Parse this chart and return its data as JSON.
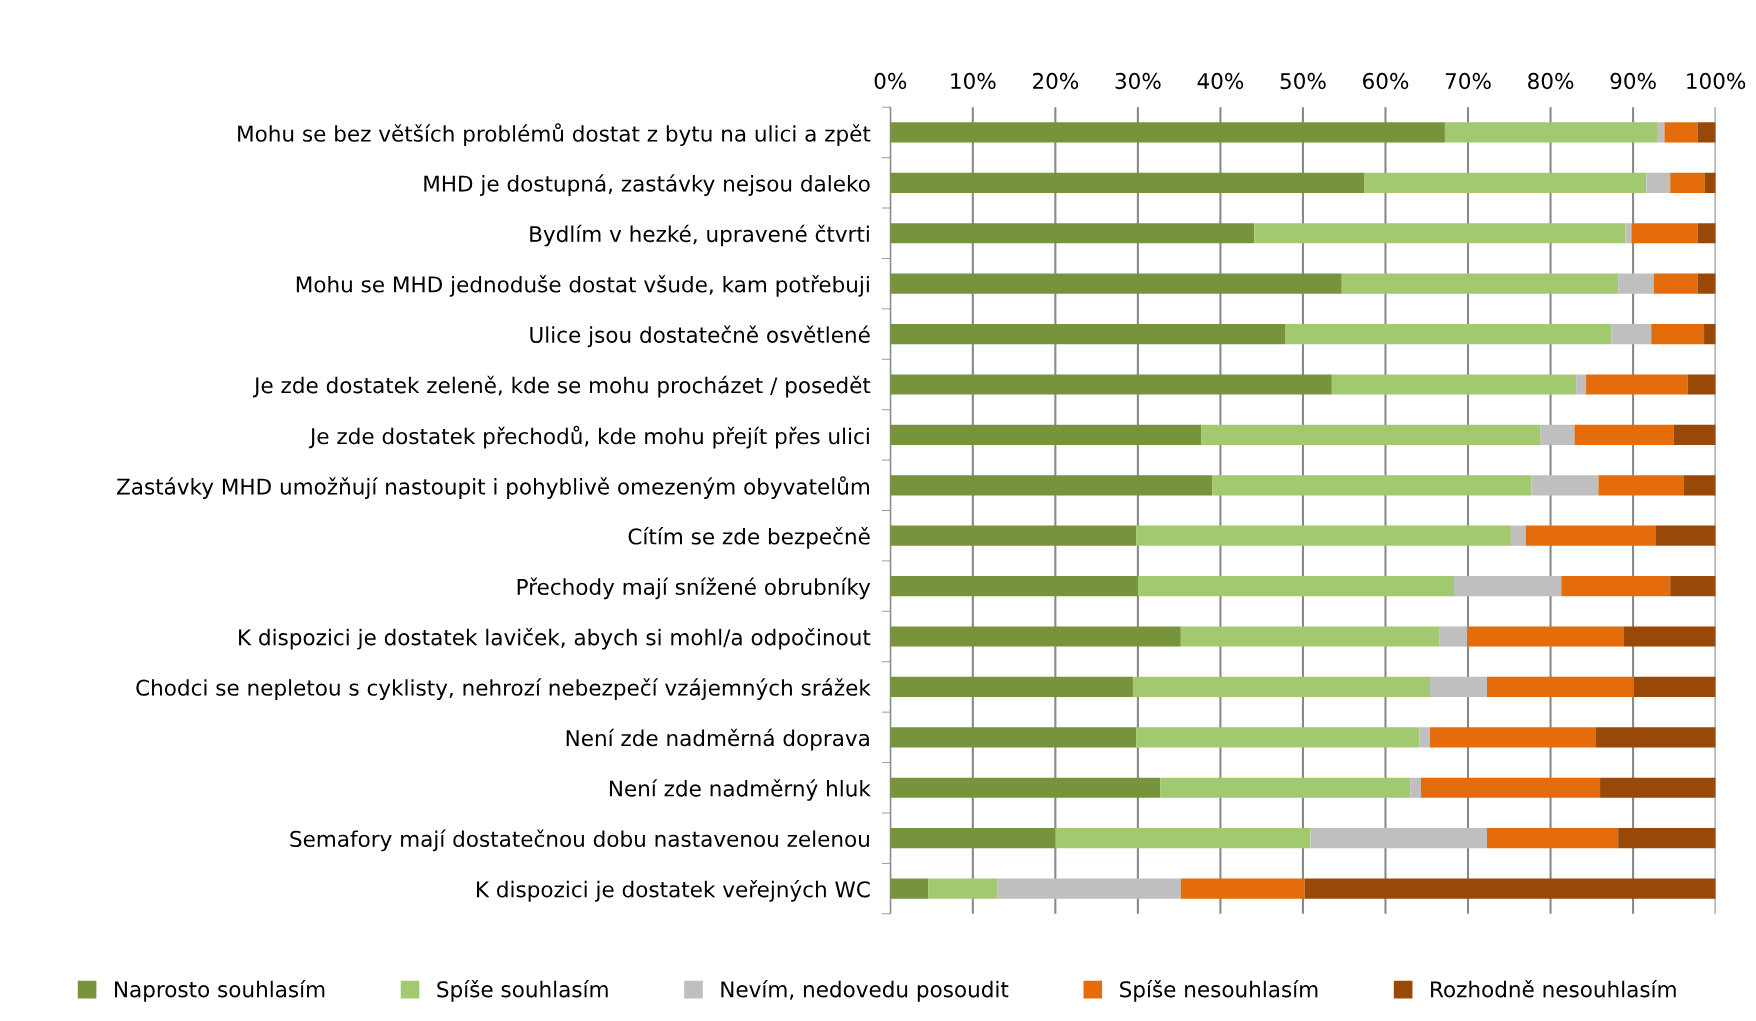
{
  "chart_data": {
    "type": "bar",
    "orientation": "horizontal",
    "stacked": true,
    "categories": [
      "Mohu se bez větších problémů dostat z bytu na ulici a zpět",
      "MHD je dostupná, zastávky nejsou daleko",
      "Bydlím v hezké, upravené čtvrti",
      "Mohu se MHD jednoduše dostat všude, kam potřebuji",
      "Ulice jsou dostatečně osvětlené",
      "Je zde dostatek zeleně, kde se mohu procházet / posedět",
      "Je zde dostatek přechodů, kde mohu přejít přes ulici",
      "Zastávky MHD umožňují nastoupit i pohyblivě omezeným obyvatelům",
      "Cítím se zde bezpečně",
      "Přechody mají snížené obrubníky",
      "K dispozici je dostatek laviček, abych si mohl/a odpočinout",
      "Chodci se nepletou s cyklisty, nehrozí nebezpečí vzájemných srážek",
      "Není zde nadměrná doprava",
      "Není zde nadměrný hluk",
      "Semafory mají dostatečnou dobu nastavenou zelenou",
      "K dispozici je dostatek veřejných WC"
    ],
    "series": [
      {
        "name": "Naprosto souhlasím",
        "color": "#77933c",
        "values": [
          67.2,
          57.4,
          44.1,
          54.7,
          47.9,
          53.5,
          37.7,
          39.0,
          29.8,
          30.0,
          35.2,
          29.4,
          29.8,
          32.7,
          20.0,
          4.6
        ]
      },
      {
        "name": "Spíše souhlasím",
        "color": "#a2c96f",
        "values": [
          25.7,
          34.2,
          45.0,
          33.5,
          39.5,
          29.6,
          41.1,
          38.7,
          45.4,
          38.3,
          31.3,
          36.0,
          34.3,
          30.3,
          30.9,
          8.4
        ]
      },
      {
        "name": "Nevím, nedovedu posoudit",
        "color": "#bfbfbf",
        "values": [
          0.9,
          2.9,
          0.7,
          4.3,
          4.8,
          1.2,
          4.1,
          8.1,
          1.8,
          13.0,
          3.4,
          6.9,
          1.3,
          1.3,
          21.4,
          22.2
        ]
      },
      {
        "name": "Spíše nesouhlasím",
        "color": "#e46c0a",
        "values": [
          4.0,
          4.2,
          8.0,
          5.3,
          6.4,
          12.3,
          12.0,
          10.3,
          15.7,
          13.2,
          19.0,
          17.8,
          20.1,
          21.7,
          15.9,
          15.0
        ]
      },
      {
        "name": "Rozhodně nesouhlasím",
        "color": "#984807",
        "values": [
          2.2,
          1.3,
          2.2,
          2.2,
          1.4,
          3.4,
          5.1,
          3.9,
          7.3,
          5.5,
          11.1,
          9.9,
          14.5,
          14.0,
          11.8,
          49.8
        ]
      }
    ],
    "xlim": [
      0,
      100
    ],
    "xticks": [
      {
        "value": 0,
        "label": "0%"
      },
      {
        "value": 10,
        "label": "10%"
      },
      {
        "value": 20,
        "label": "20%"
      },
      {
        "value": 30,
        "label": "30%"
      },
      {
        "value": 40,
        "label": "40%"
      },
      {
        "value": 50,
        "label": "50%"
      },
      {
        "value": 60,
        "label": "60%"
      },
      {
        "value": 70,
        "label": "70%"
      },
      {
        "value": 80,
        "label": "80%"
      },
      {
        "value": 90,
        "label": "90%"
      },
      {
        "value": 100,
        "label": "100%"
      }
    ],
    "grid": "x",
    "legend": "bottom"
  }
}
